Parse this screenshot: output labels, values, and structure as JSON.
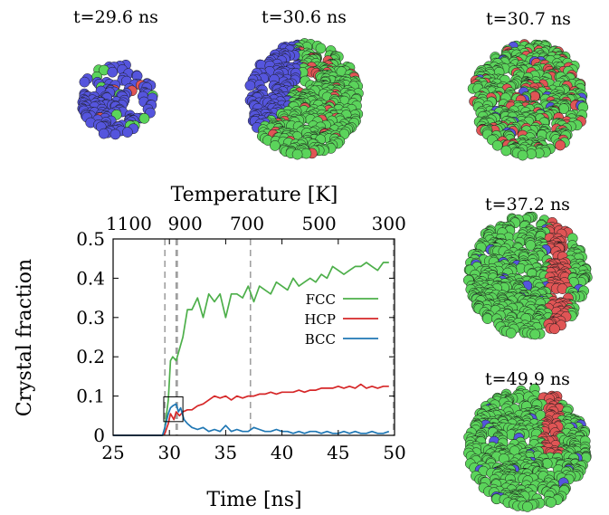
{
  "snapshots": [
    {
      "label": "t=29.6 ns"
    },
    {
      "label": "t=30.6 ns"
    },
    {
      "label": "t=30.7 ns"
    },
    {
      "label": "t=37.2 ns"
    },
    {
      "label": "t=49.9 ns"
    }
  ],
  "colors": {
    "fcc": "#4daf4a",
    "hcp": "#d62728",
    "bcc": "#1f77b4",
    "atom_fcc": "#5bd45b",
    "atom_hcp": "#e05555",
    "atom_bcc": "#5555dd",
    "marker_line": "#a0a0a0"
  },
  "chart_data": {
    "type": "line",
    "title": "",
    "xlabel": "Time [ns]",
    "ylabel": "Crystal fraction",
    "x2label": "Temperature [K]",
    "xlim": [
      25,
      50
    ],
    "ylim": [
      0,
      0.5
    ],
    "xticks": [
      25,
      30,
      35,
      40,
      45,
      50
    ],
    "yticks": [
      0,
      0.1,
      0.2,
      0.3,
      0.4,
      0.5
    ],
    "ytick_labels": [
      "0",
      "0.1",
      "0.2",
      "0.3",
      "0.4",
      "0.5"
    ],
    "x2ticks": [
      {
        "label": "1100",
        "time": 26.4
      },
      {
        "label": "900",
        "time": 31.4
      },
      {
        "label": "700",
        "time": 36.9
      },
      {
        "label": "500",
        "time": 43.3
      },
      {
        "label": "300",
        "time": 49.5
      }
    ],
    "marker_times": [
      29.6,
      30.6,
      30.7,
      37.2,
      49.9
    ],
    "inset_box": {
      "x": [
        29.5,
        31.2
      ],
      "y": [
        0.035,
        0.098
      ]
    },
    "legend_position": "right",
    "series": [
      {
        "name": "FCC",
        "color_key": "fcc",
        "x": [
          25,
          29.4,
          29.6,
          29.9,
          30.1,
          30.3,
          30.6,
          30.9,
          31.2,
          31.6,
          32.0,
          32.5,
          33.0,
          33.5,
          34.0,
          34.5,
          35.0,
          35.5,
          36.0,
          36.5,
          37.0,
          37.5,
          38.0,
          38.5,
          39.0,
          39.5,
          40.0,
          40.5,
          41.0,
          41.5,
          42.0,
          42.5,
          43.0,
          43.5,
          44.0,
          44.5,
          45.0,
          45.5,
          46.0,
          46.5,
          47.0,
          47.5,
          48.0,
          48.5,
          49.0,
          49.5
        ],
        "values": [
          0,
          0,
          0.02,
          0.09,
          0.19,
          0.2,
          0.19,
          0.22,
          0.25,
          0.32,
          0.32,
          0.35,
          0.3,
          0.36,
          0.34,
          0.36,
          0.3,
          0.36,
          0.36,
          0.35,
          0.38,
          0.34,
          0.38,
          0.37,
          0.36,
          0.39,
          0.38,
          0.37,
          0.4,
          0.38,
          0.39,
          0.4,
          0.39,
          0.41,
          0.4,
          0.43,
          0.42,
          0.41,
          0.42,
          0.43,
          0.43,
          0.44,
          0.43,
          0.42,
          0.44,
          0.44
        ]
      },
      {
        "name": "HCP",
        "color_key": "hcp",
        "x": [
          25,
          29.4,
          29.6,
          29.9,
          30.1,
          30.4,
          30.6,
          30.9,
          31.2,
          31.6,
          32.0,
          32.5,
          33.0,
          33.5,
          34.0,
          34.5,
          35.0,
          35.5,
          36.0,
          36.5,
          37.0,
          37.5,
          38.0,
          38.5,
          39.0,
          39.5,
          40.0,
          40.5,
          41.0,
          41.5,
          42.0,
          42.5,
          43.0,
          43.5,
          44.0,
          44.5,
          45.0,
          45.5,
          46.0,
          46.5,
          47.0,
          47.5,
          48.0,
          48.5,
          49.0,
          49.5
        ],
        "values": [
          0,
          0,
          0.005,
          0.03,
          0.055,
          0.04,
          0.06,
          0.05,
          0.06,
          0.065,
          0.065,
          0.075,
          0.08,
          0.09,
          0.1,
          0.095,
          0.1,
          0.09,
          0.1,
          0.095,
          0.1,
          0.1,
          0.105,
          0.105,
          0.11,
          0.105,
          0.11,
          0.11,
          0.11,
          0.115,
          0.11,
          0.115,
          0.115,
          0.12,
          0.12,
          0.12,
          0.125,
          0.12,
          0.125,
          0.12,
          0.13,
          0.12,
          0.125,
          0.12,
          0.125,
          0.125
        ]
      },
      {
        "name": "BCC",
        "color_key": "bcc",
        "x": [
          25,
          29.4,
          29.6,
          29.9,
          30.1,
          30.3,
          30.6,
          30.8,
          31.0,
          31.3,
          31.6,
          32.0,
          32.5,
          33.0,
          33.5,
          34.0,
          34.5,
          35.0,
          35.5,
          36.0,
          36.5,
          37.0,
          37.5,
          38.0,
          38.5,
          39.0,
          39.5,
          40.0,
          40.5,
          41.0,
          41.5,
          42.0,
          42.5,
          43.0,
          43.5,
          44.0,
          44.5,
          45.0,
          45.5,
          46.0,
          46.5,
          47.0,
          47.5,
          48.0,
          48.5,
          49.0,
          49.5
        ],
        "values": [
          0,
          0,
          0.02,
          0.055,
          0.07,
          0.075,
          0.08,
          0.06,
          0.07,
          0.04,
          0.03,
          0.02,
          0.015,
          0.02,
          0.01,
          0.015,
          0.01,
          0.025,
          0.01,
          0.015,
          0.01,
          0.01,
          0.02,
          0.015,
          0.01,
          0.01,
          0.015,
          0.01,
          0.01,
          0.005,
          0.01,
          0.005,
          0.01,
          0.01,
          0.005,
          0.01,
          0.005,
          0.005,
          0.01,
          0.005,
          0.01,
          0.005,
          0.005,
          0.01,
          0.005,
          0.005,
          0.01
        ]
      }
    ]
  }
}
